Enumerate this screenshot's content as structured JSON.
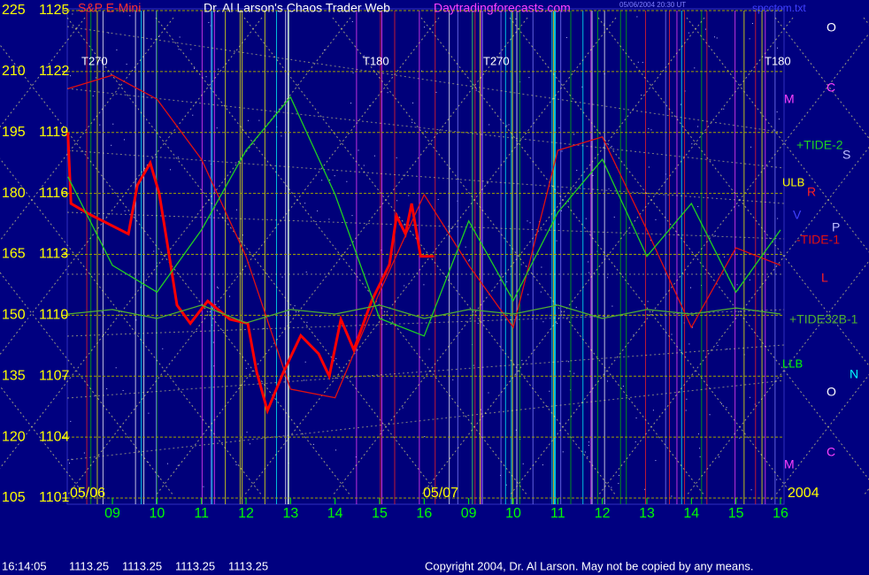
{
  "chart_data": {
    "type": "line",
    "title": "Dr. Al Larson's Chaos Trader Web",
    "site": "Daytradingforecasts.com",
    "file": "spcctom.txt",
    "timestamp": "05/06/2004 20:30 UT",
    "xlim": [
      8,
      24.1
    ],
    "xticks": [
      {
        "value": 9,
        "label": "09"
      },
      10,
      11,
      12,
      13,
      14,
      15,
      16,
      {
        "value": 17,
        "label": "09"
      },
      {
        "value": 18,
        "label": "10"
      },
      {
        "value": 19,
        "label": "11"
      },
      {
        "value": 20,
        "label": "12"
      },
      {
        "value": 21,
        "label": "13"
      },
      {
        "value": 22,
        "label": "14"
      },
      {
        "value": 23,
        "label": "15"
      },
      {
        "value": 24,
        "label": "16"
      }
    ],
    "ylim": [
      1101,
      1125
    ],
    "yticks": [
      1101,
      1104,
      1107,
      1110,
      1113,
      1116,
      1119,
      1122,
      1125
    ],
    "y2lim": [
      105,
      225
    ],
    "y2ticks": [
      105,
      120,
      135,
      150,
      165,
      180,
      195,
      210,
      225
    ],
    "grid": true,
    "date_labels": [
      "05/06",
      "05/07",
      "2004"
    ],
    "annotations": [
      "T270",
      "T180",
      "T270",
      "T180",
      "ULB",
      "LLB"
    ],
    "planet_labels": [
      "O",
      "C",
      "M",
      "S",
      "R",
      "V",
      "P",
      "L",
      "O",
      "N",
      "M",
      "C"
    ],
    "series": [
      {
        "name": "S&P E-Mini",
        "color": "#ff0000",
        "x": [
          8.0,
          8.07,
          8.46,
          9.36,
          9.56,
          9.85,
          10.05,
          10.25,
          10.45,
          10.75,
          11.14,
          11.64,
          12.04,
          12.24,
          12.48,
          12.84,
          13.23,
          13.63,
          13.87,
          14.13,
          14.42,
          14.82,
          15.22,
          15.38,
          15.58,
          15.72,
          15.92,
          16.22
        ],
        "values": [
          1119,
          1115.5,
          1115,
          1114,
          1116.4,
          1117.5,
          1116,
          1113.3,
          1110.5,
          1109.6,
          1110.7,
          1109.8,
          1109.6,
          1107.2,
          1105.3,
          1107.2,
          1109,
          1108.1,
          1107,
          1109.8,
          1108.3,
          1110.7,
          1112.5,
          1114.9,
          1114,
          1115.5,
          1112.9,
          1112.9
        ]
      },
      {
        "name": "-TIDE-1",
        "color": "#e01010",
        "axis": "y2",
        "x": [
          8,
          9,
          10,
          11,
          12,
          13,
          14,
          15,
          16,
          17,
          18,
          19,
          20,
          21,
          22,
          23,
          24
        ],
        "values": [
          205.8,
          209.1,
          203.2,
          188.4,
          164.5,
          131.8,
          129.7,
          155.7,
          179.7,
          162.3,
          147.0,
          190.6,
          193.9,
          171.0,
          147.0,
          166.6,
          162.3
        ]
      },
      {
        "name": "+TIDE-2",
        "color": "#20d020",
        "axis": "y2",
        "x": [
          8,
          9,
          10,
          11,
          12,
          13,
          14,
          15,
          16,
          17,
          18,
          19,
          20,
          21,
          22,
          23,
          24
        ],
        "values": [
          184.1,
          162.3,
          155.7,
          171.0,
          190.6,
          203.7,
          179.7,
          149.2,
          144.9,
          173.2,
          153.6,
          175.3,
          188.4,
          164.5,
          177.5,
          155.7,
          171.0
        ]
      },
      {
        "name": "+TIDE32B-1",
        "color": "#50b030",
        "axis": "y2",
        "x": [
          8,
          9,
          10,
          11,
          12,
          13,
          14,
          15,
          16,
          17,
          18,
          19,
          20,
          21,
          22,
          23,
          24
        ],
        "values": [
          150.3,
          151.4,
          149.2,
          152.5,
          148.1,
          151.4,
          150.3,
          152.5,
          149.2,
          151.4,
          150.3,
          152.5,
          149.2,
          151.4,
          150.3,
          151.8,
          150.3
        ]
      }
    ],
    "status": {
      "time": "16:14:05",
      "quotes": [
        "1113.25",
        "1113.25",
        "1113.25",
        "1113.25"
      ]
    },
    "copyright": "Copyright 2004, Dr. Al Larson. May not be copied by any means."
  }
}
